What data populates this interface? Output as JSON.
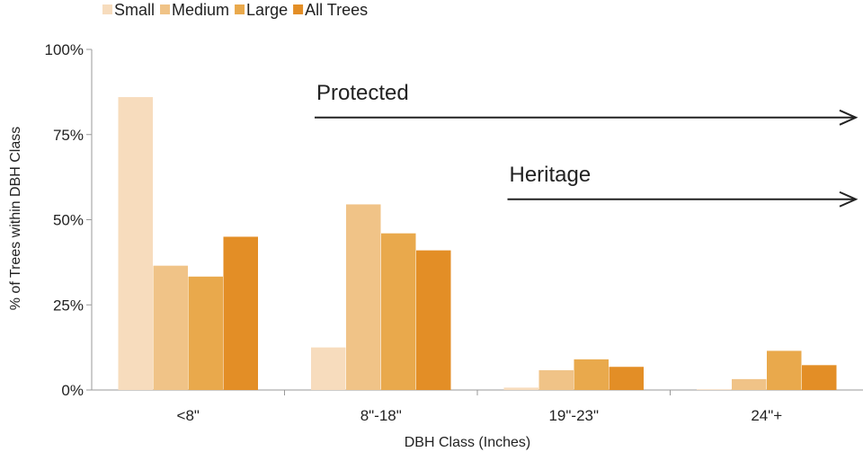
{
  "chart_data": {
    "type": "bar",
    "title": "",
    "xlabel": "DBH Class (Inches)",
    "ylabel": "% of Trees within DBH Class",
    "categories": [
      "<8\"",
      "8\"-18\"",
      "19\"-23\"",
      "24\"+"
    ],
    "series": [
      {
        "name": "Small",
        "color": "#f7dcbd",
        "values": [
          86,
          12.5,
          0.7,
          0.2
        ]
      },
      {
        "name": "Medium",
        "color": "#f0c387",
        "values": [
          36.5,
          54.5,
          5.8,
          3.2
        ]
      },
      {
        "name": "Large",
        "color": "#e9a94c",
        "values": [
          33.3,
          46,
          9,
          11.5
        ]
      },
      {
        "name": "All Trees",
        "color": "#e38e26",
        "values": [
          45,
          41,
          6.8,
          7.3
        ]
      }
    ],
    "ylim": [
      0,
      100
    ],
    "yticks": [
      0,
      25,
      50,
      75,
      100
    ],
    "ytick_labels": [
      "0%",
      "25%",
      "50%",
      "75%",
      "100%"
    ],
    "grid": false,
    "legend_position": "top-left",
    "annotations": [
      {
        "text": "Protected",
        "from_category": "8\"-18\"",
        "y": 80
      },
      {
        "text": "Heritage",
        "from_category": "19\"-23\"",
        "y": 56
      }
    ]
  }
}
